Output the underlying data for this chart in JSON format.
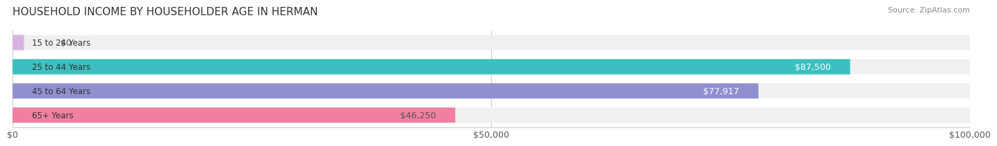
{
  "title": "HOUSEHOLD INCOME BY HOUSEHOLDER AGE IN HERMAN",
  "source": "Source: ZipAtlas.com",
  "categories": [
    "15 to 24 Years",
    "25 to 44 Years",
    "45 to 64 Years",
    "65+ Years"
  ],
  "values": [
    0,
    87500,
    77917,
    46250
  ],
  "labels": [
    "$0",
    "$87,500",
    "$77,917",
    "$46,250"
  ],
  "bar_colors": [
    "#d8b4e2",
    "#3dbfbf",
    "#9090d0",
    "#f080a0"
  ],
  "bar_bg_color": "#f0f0f0",
  "label_colors": [
    "#555555",
    "#ffffff",
    "#ffffff",
    "#555555"
  ],
  "xlim": [
    0,
    100000
  ],
  "xticks": [
    0,
    50000,
    100000
  ],
  "xticklabels": [
    "$0",
    "$50,000",
    "$100,000"
  ],
  "title_fontsize": 11,
  "source_fontsize": 8,
  "tick_fontsize": 9,
  "label_fontsize": 9,
  "cat_fontsize": 8.5,
  "background_color": "#ffffff"
}
